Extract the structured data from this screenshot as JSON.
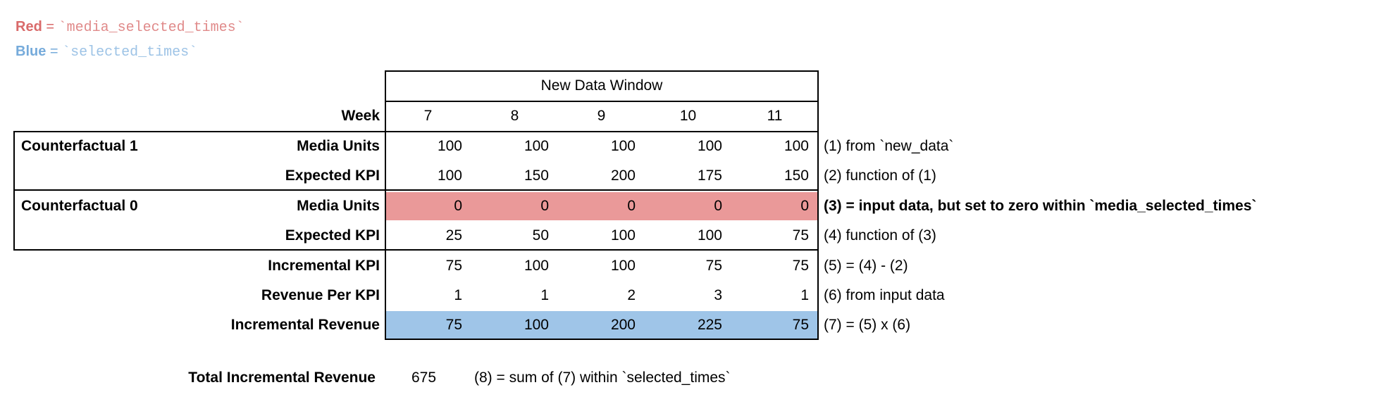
{
  "legend": {
    "red": {
      "label": "Red",
      "eq": " = ",
      "code": "`media_selected_times`"
    },
    "blue": {
      "label": "Blue",
      "eq": " = ",
      "code": "`selected_times`"
    }
  },
  "table": {
    "window_title": "New Data Window",
    "week_label": "Week",
    "weeks": [
      "7",
      "8",
      "9",
      "10",
      "11"
    ],
    "rows": [
      {
        "group": "Counterfactual 1",
        "label": "Media Units",
        "values": [
          "100",
          "100",
          "100",
          "100",
          "100"
        ],
        "annotation": "(1) from `new_data`",
        "highlight": "none"
      },
      {
        "group": "",
        "label": "Expected KPI",
        "values": [
          "100",
          "150",
          "200",
          "175",
          "150"
        ],
        "annotation": "(2) function of (1)",
        "highlight": "none"
      },
      {
        "group": "Counterfactual 0",
        "label": "Media Units",
        "values": [
          "0",
          "0",
          "0",
          "0",
          "0"
        ],
        "annotation": "(3) = input data, but set to zero within `media_selected_times`",
        "highlight": "red"
      },
      {
        "group": "",
        "label": "Expected KPI",
        "values": [
          "25",
          "50",
          "100",
          "100",
          "75"
        ],
        "annotation": "(4) function of (3)",
        "highlight": "none"
      },
      {
        "group": "",
        "label": "Incremental KPI",
        "values": [
          "75",
          "100",
          "100",
          "75",
          "75"
        ],
        "annotation": "(5) = (4) - (2)",
        "highlight": "none"
      },
      {
        "group": "",
        "label": "Revenue Per KPI",
        "values": [
          "1",
          "1",
          "2",
          "3",
          "1"
        ],
        "annotation": "(6) from input data",
        "highlight": "none"
      },
      {
        "group": "",
        "label": "Incremental Revenue",
        "values": [
          "75",
          "100",
          "200",
          "225",
          "75"
        ],
        "annotation": "(7) = (5) x (6)",
        "highlight": "blue"
      }
    ]
  },
  "total": {
    "label": "Total Incremental Revenue",
    "value": "675",
    "annotation": "(8) = sum of (7) within `selected_times`"
  },
  "colors": {
    "red_fill": "#EA9999",
    "blue_fill": "#9FC5E8",
    "red_text": "#D96A6A",
    "blue_text": "#76ABDB",
    "border": "#000000"
  }
}
